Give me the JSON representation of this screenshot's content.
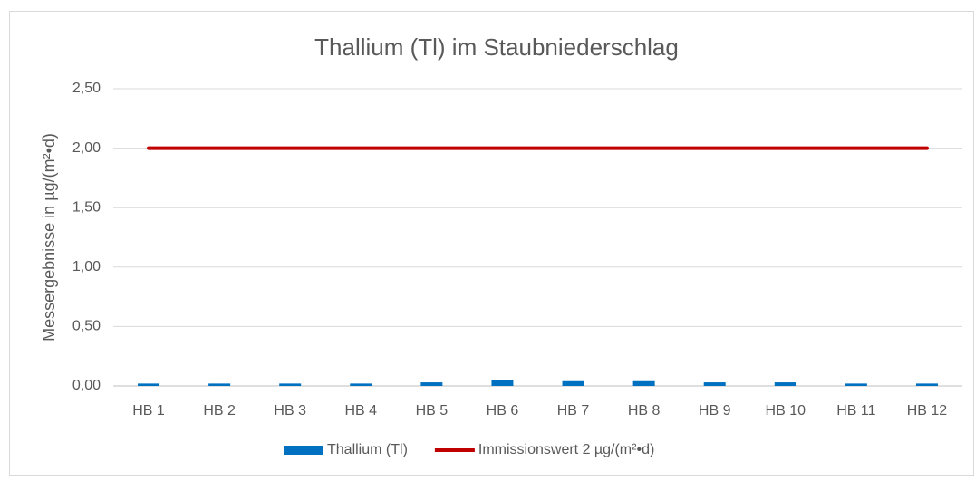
{
  "chart_data": {
    "type": "bar",
    "title": "Thallium (Tl) im Staubniederschlag",
    "y_label": "Messergebnisse in µg/(m²•d)",
    "categories": [
      "HB 1",
      "HB 2",
      "HB 3",
      "HB 4",
      "HB 5",
      "HB 6",
      "HB 7",
      "HB 8",
      "HB 9",
      "HB 10",
      "HB 11",
      "HB 12"
    ],
    "series": [
      {
        "name": "Thallium (Tl)",
        "type": "bar",
        "color": "#0070c0",
        "values": [
          0.02,
          0.02,
          0.02,
          0.02,
          0.03,
          0.05,
          0.04,
          0.04,
          0.03,
          0.03,
          0.02,
          0.02
        ]
      },
      {
        "name": "Immissionswert 2 µg/(m²•d)",
        "type": "line",
        "color": "#c00000",
        "values": [
          2,
          2,
          2,
          2,
          2,
          2,
          2,
          2,
          2,
          2,
          2,
          2
        ]
      }
    ],
    "ylim": [
      0,
      2.5
    ],
    "yticks": [
      {
        "value": 0,
        "label": "0,00"
      },
      {
        "value": 0.5,
        "label": "0,50"
      },
      {
        "value": 1,
        "label": "1,00"
      },
      {
        "value": 1.5,
        "label": "1,50"
      },
      {
        "value": 2,
        "label": "2,00"
      },
      {
        "value": 2.5,
        "label": "2,50"
      }
    ],
    "grid": true,
    "legend": "bottom"
  }
}
